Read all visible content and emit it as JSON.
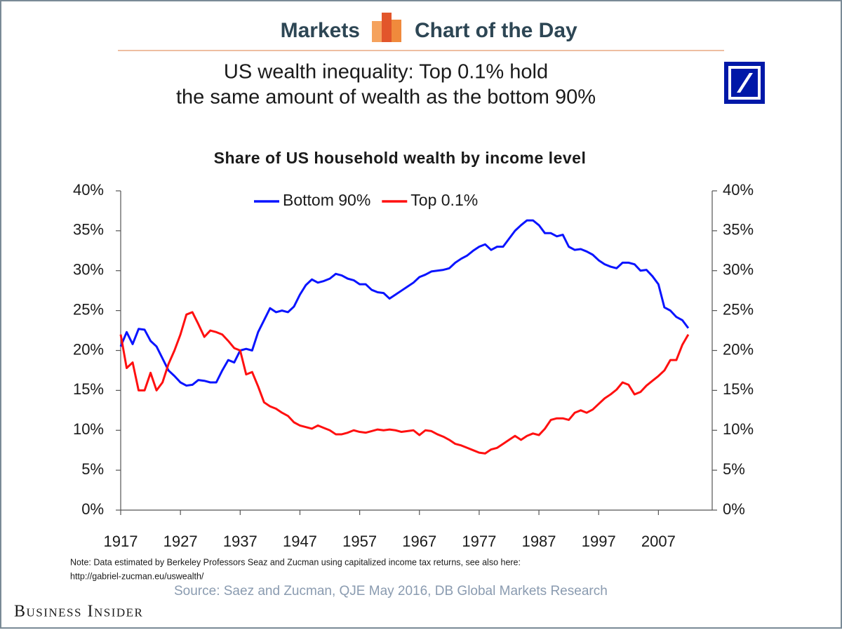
{
  "header": {
    "left": "Markets",
    "right": "Chart of the Day"
  },
  "headline": [
    "US wealth inequality: Top 0.1% hold",
    "the same amount of wealth as the bottom 90%"
  ],
  "note": [
    "Note: Data estimated by Berkeley Professors Seaz and Zucman using capitalized income tax returns, see also here:",
    "http://gabriel-zucman.eu/uswealth/"
  ],
  "source": "Source: Saez and Zucman, QJE May 2016, DB Global Markets Research",
  "brand": "Business Insider",
  "chart_data": {
    "type": "line",
    "title": "Share of US household wealth by income level",
    "legend": "top",
    "x": [
      1917,
      1918,
      1919,
      1920,
      1921,
      1922,
      1923,
      1924,
      1925,
      1926,
      1927,
      1928,
      1929,
      1930,
      1931,
      1932,
      1933,
      1934,
      1935,
      1936,
      1937,
      1938,
      1939,
      1940,
      1941,
      1942,
      1943,
      1944,
      1945,
      1946,
      1947,
      1948,
      1949,
      1950,
      1951,
      1952,
      1953,
      1954,
      1955,
      1956,
      1957,
      1958,
      1959,
      1960,
      1961,
      1962,
      1963,
      1964,
      1965,
      1966,
      1967,
      1968,
      1969,
      1970,
      1971,
      1972,
      1973,
      1974,
      1975,
      1976,
      1977,
      1978,
      1979,
      1980,
      1981,
      1982,
      1983,
      1984,
      1985,
      1986,
      1987,
      1988,
      1989,
      1990,
      1991,
      1992,
      1993,
      1994,
      1995,
      1996,
      1997,
      1998,
      1999,
      2000,
      2001,
      2002,
      2003,
      2004,
      2005,
      2006,
      2007,
      2008,
      2009,
      2010,
      2011,
      2012
    ],
    "xlim": [
      1917,
      2016
    ],
    "xticks": [
      1917,
      1927,
      1937,
      1947,
      1957,
      1967,
      1977,
      1987,
      1997,
      2007
    ],
    "ylim": [
      0,
      40
    ],
    "yticks": [
      {
        "value": 0,
        "label": "0%"
      },
      {
        "value": 5,
        "label": "5%"
      },
      {
        "value": 10,
        "label": "10%"
      },
      {
        "value": 15,
        "label": "15%"
      },
      {
        "value": 20,
        "label": "20%"
      },
      {
        "value": 25,
        "label": "25%"
      },
      {
        "value": 30,
        "label": "30%"
      },
      {
        "value": 35,
        "label": "35%"
      },
      {
        "value": 40,
        "label": "40%"
      }
    ],
    "y2lim": [
      0,
      40
    ],
    "y2ticks": [
      {
        "value": 0,
        "label": "0%"
      },
      {
        "value": 5,
        "label": "5%"
      },
      {
        "value": 10,
        "label": "10%"
      },
      {
        "value": 15,
        "label": "15%"
      },
      {
        "value": 20,
        "label": "20%"
      },
      {
        "value": 25,
        "label": "25%"
      },
      {
        "value": 30,
        "label": "30%"
      },
      {
        "value": 35,
        "label": "35%"
      },
      {
        "value": 40,
        "label": "40%"
      }
    ],
    "series": [
      {
        "name": "Bottom 90%",
        "color": "#0a14ff",
        "values": [
          20.5,
          22.3,
          20.8,
          22.7,
          22.6,
          21.2,
          20.5,
          19.0,
          17.5,
          16.8,
          16.0,
          15.6,
          15.7,
          16.3,
          16.2,
          16.0,
          16.0,
          17.5,
          18.8,
          18.5,
          20.0,
          20.2,
          20.0,
          22.3,
          23.8,
          25.3,
          24.8,
          25.0,
          24.8,
          25.5,
          27.0,
          28.2,
          28.9,
          28.5,
          28.7,
          29.0,
          29.6,
          29.4,
          29.0,
          28.8,
          28.3,
          28.3,
          27.6,
          27.3,
          27.2,
          26.5,
          27.0,
          27.5,
          28.0,
          28.5,
          29.2,
          29.5,
          29.9,
          30.0,
          30.1,
          30.3,
          31.0,
          31.5,
          31.9,
          32.5,
          33.0,
          33.3,
          32.6,
          33.0,
          33.0,
          34.0,
          35.0,
          35.7,
          36.3,
          36.3,
          35.7,
          34.7,
          34.7,
          34.3,
          34.5,
          33.0,
          32.6,
          32.7,
          32.4,
          32.0,
          31.3,
          30.8,
          30.5,
          30.3,
          31.0,
          31.0,
          30.8,
          30.0,
          30.1,
          29.3,
          28.3,
          25.4,
          25.0,
          24.2,
          23.8,
          22.8
        ]
      },
      {
        "name": "Top 0.1%",
        "color": "#ff1010",
        "values": [
          22.0,
          17.8,
          18.5,
          15.0,
          15.0,
          17.2,
          15.0,
          16.0,
          18.3,
          20.0,
          22.0,
          24.5,
          24.8,
          23.3,
          21.7,
          22.5,
          22.3,
          22.0,
          21.2,
          20.3,
          20.0,
          17.0,
          17.3,
          15.5,
          13.5,
          13.0,
          12.7,
          12.2,
          11.8,
          11.0,
          10.6,
          10.4,
          10.2,
          10.6,
          10.3,
          10.0,
          9.5,
          9.5,
          9.7,
          10.0,
          9.8,
          9.7,
          9.9,
          10.1,
          10.0,
          10.1,
          10.0,
          9.8,
          9.9,
          10.0,
          9.4,
          10.0,
          9.9,
          9.5,
          9.2,
          8.8,
          8.3,
          8.1,
          7.8,
          7.5,
          7.2,
          7.1,
          7.6,
          7.8,
          8.3,
          8.8,
          9.3,
          8.8,
          9.3,
          9.6,
          9.4,
          10.2,
          11.3,
          11.5,
          11.5,
          11.3,
          12.2,
          12.5,
          12.2,
          12.6,
          13.3,
          14.0,
          14.5,
          15.1,
          16.0,
          15.7,
          14.5,
          14.8,
          15.6,
          16.2,
          16.8,
          17.5,
          18.8,
          18.8,
          20.7,
          22.0
        ]
      }
    ]
  }
}
